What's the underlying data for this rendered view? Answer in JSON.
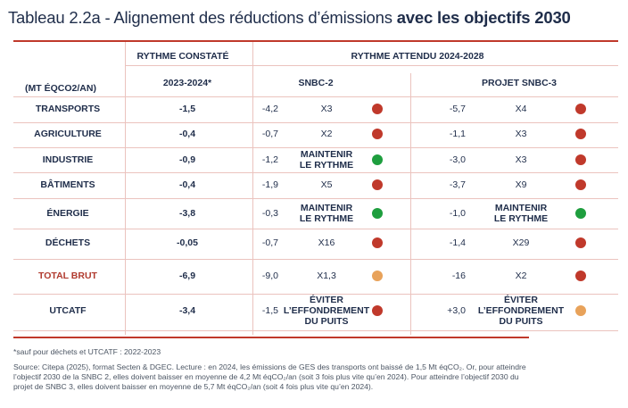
{
  "title": {
    "part1": "Tableau 2.2a - Alignement des réductions d’émissions ",
    "part2": "avec les objectifs 2030"
  },
  "headers": {
    "rythme_constate": "RYTHME CONSTATÉ",
    "rythme_attendu": "RYTHME ATTENDU 2024-2028",
    "unit": "(MT ÉQCO2/AN)",
    "period": "2023-2024*",
    "snbc2": "SNBC-2",
    "snbc3": "PROJET SNBC-3"
  },
  "colors": {
    "red": "#c0392b",
    "green": "#1e9e3e",
    "orange": "#e8a25a",
    "accent": "#c0392b"
  },
  "rows": [
    {
      "sector": "TRANSPORTS",
      "observed": "-1,5",
      "snbc2_value": "-4,2",
      "snbc2_mult": [
        "X3"
      ],
      "snbc2_status": "red",
      "snbc3_value": "-5,7",
      "snbc3_mult": [
        "X4"
      ],
      "snbc3_status": "red"
    },
    {
      "sector": "AGRICULTURE",
      "observed": "-0,4",
      "snbc2_value": "-0,7",
      "snbc2_mult": [
        "X2"
      ],
      "snbc2_status": "red",
      "snbc3_value": "-1,1",
      "snbc3_mult": [
        "X3"
      ],
      "snbc3_status": "red"
    },
    {
      "sector": "INDUSTRIE",
      "observed": "-0,9",
      "snbc2_value": "-1,2",
      "snbc2_mult": [
        "MAINTENIR",
        "LE RYTHME"
      ],
      "snbc2_status": "green",
      "snbc3_value": "-3,0",
      "snbc3_mult": [
        "X3"
      ],
      "snbc3_status": "red"
    },
    {
      "sector": "BÂTIMENTS",
      "observed": "-0,4",
      "snbc2_value": "-1,9",
      "snbc2_mult": [
        "X5"
      ],
      "snbc2_status": "red",
      "snbc3_value": "-3,7",
      "snbc3_mult": [
        "X9"
      ],
      "snbc3_status": "red"
    },
    {
      "sector": "ÉNERGIE",
      "observed": "-3,8",
      "snbc2_value": "-0,3",
      "snbc2_mult": [
        "MAINTENIR",
        "LE RYTHME"
      ],
      "snbc2_status": "green",
      "snbc3_value": "-1,0",
      "snbc3_mult": [
        "MAINTENIR",
        "LE RYTHME"
      ],
      "snbc3_status": "green"
    },
    {
      "sector": "DÉCHETS",
      "observed": "-0,05",
      "snbc2_value": "-0,7",
      "snbc2_mult": [
        "X16"
      ],
      "snbc2_status": "red",
      "snbc3_value": "-1,4",
      "snbc3_mult": [
        "X29"
      ],
      "snbc3_status": "red"
    },
    {
      "sector": "TOTAL BRUT",
      "observed": "-6,9",
      "snbc2_value": "-9,0",
      "snbc2_mult": [
        "X1,3"
      ],
      "snbc2_status": "orange",
      "snbc3_value": "-16",
      "snbc3_mult": [
        "X2"
      ],
      "snbc3_status": "red",
      "is_total": true
    },
    {
      "sector": "UTCATF",
      "observed": "-3,4",
      "snbc2_value": "-1,5",
      "snbc2_mult": [
        "ÉVITER",
        "L’EFFONDREMENT",
        "DU PUITS"
      ],
      "snbc2_status": "red",
      "snbc3_value": "+3,0",
      "snbc3_mult": [
        "ÉVITER",
        "L’EFFONDREMENT",
        "DU PUITS"
      ],
      "snbc3_status": "orange"
    }
  ],
  "notes": {
    "footnote": "*sauf pour déchets et UTCATF : 2022-2023",
    "source": [
      "Source: Citepa (2025), format Secten & DGEC. Lecture :  en 2024, les émissions de GES des transports ont baissé de 1,5 Mt éqCO₂. Or, pour atteindre",
      "l’objectif 2030 de la SNBC 2, elles doivent baisser en moyenne de 4,2 Mt éqCO₂/an (soit 3 fois plus vite qu’en 2024). Pour atteindre l’objectif 2030 du",
      "projet de SNBC 3, elles doivent baisser en moyenne de 5,7 Mt éqCO₂/an (soit 4 fois plus vite qu’en 2024)."
    ]
  }
}
